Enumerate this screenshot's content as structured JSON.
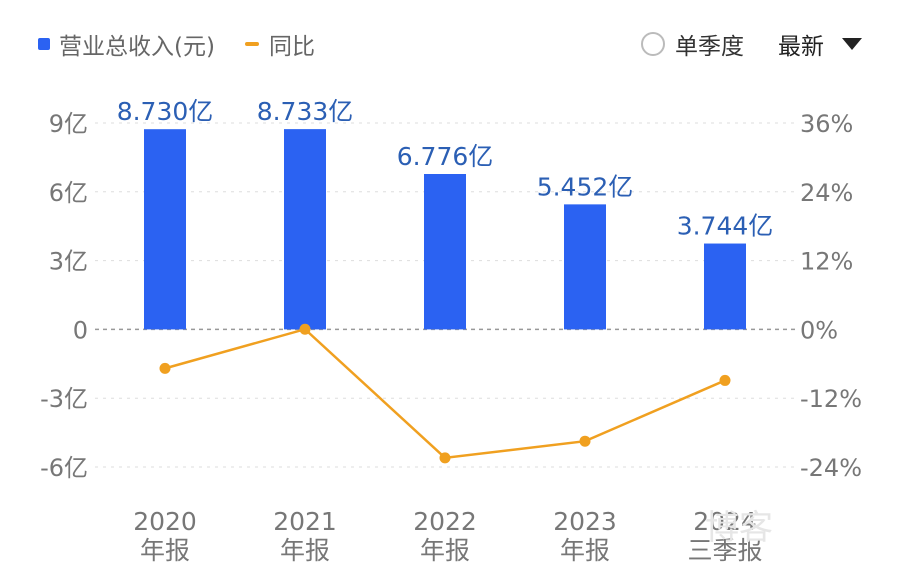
{
  "legend": {
    "revenue_label": "营业总收入(元)",
    "yoy_label": "同比"
  },
  "controls": {
    "single_quarter_label": "单季度",
    "period_select_label": "最新"
  },
  "watermark": "博客",
  "colors": {
    "bar": "#2b62f2",
    "line": "#f0a020",
    "value_label": "#2b5fb4",
    "axis_text": "#777777",
    "grid": "#dddddd"
  },
  "chart_data": {
    "type": "bar",
    "categories": [
      [
        "2020",
        "年报"
      ],
      [
        "2021",
        "年报"
      ],
      [
        "2022",
        "年报"
      ],
      [
        "2023",
        "年报"
      ],
      [
        "2024",
        "三季报"
      ]
    ],
    "series": [
      {
        "type": "bar",
        "axis": "left",
        "values": [
          8.73,
          8.733,
          6.776,
          5.452,
          3.744
        ],
        "labels": [
          "8.730亿",
          "8.733亿",
          "6.776亿",
          "5.452亿",
          "3.744亿"
        ]
      },
      {
        "type": "line",
        "axis": "right",
        "values": [
          -6.8,
          0.03,
          -22.4,
          -19.5,
          -8.9
        ]
      }
    ],
    "y_left": {
      "min": -6,
      "max": 9,
      "ticks": [
        9,
        6,
        3,
        0,
        -3,
        -6
      ],
      "tick_labels": [
        "9亿",
        "6亿",
        "3亿",
        "0",
        "-3亿",
        "-6亿"
      ]
    },
    "y_right": {
      "min": -24,
      "max": 36,
      "ticks": [
        36,
        24,
        12,
        0,
        -12,
        -24
      ],
      "tick_labels": [
        "36%",
        "24%",
        "12%",
        "0%",
        "-12%",
        "-24%"
      ]
    },
    "grid": true,
    "legend_position": "top-left"
  }
}
